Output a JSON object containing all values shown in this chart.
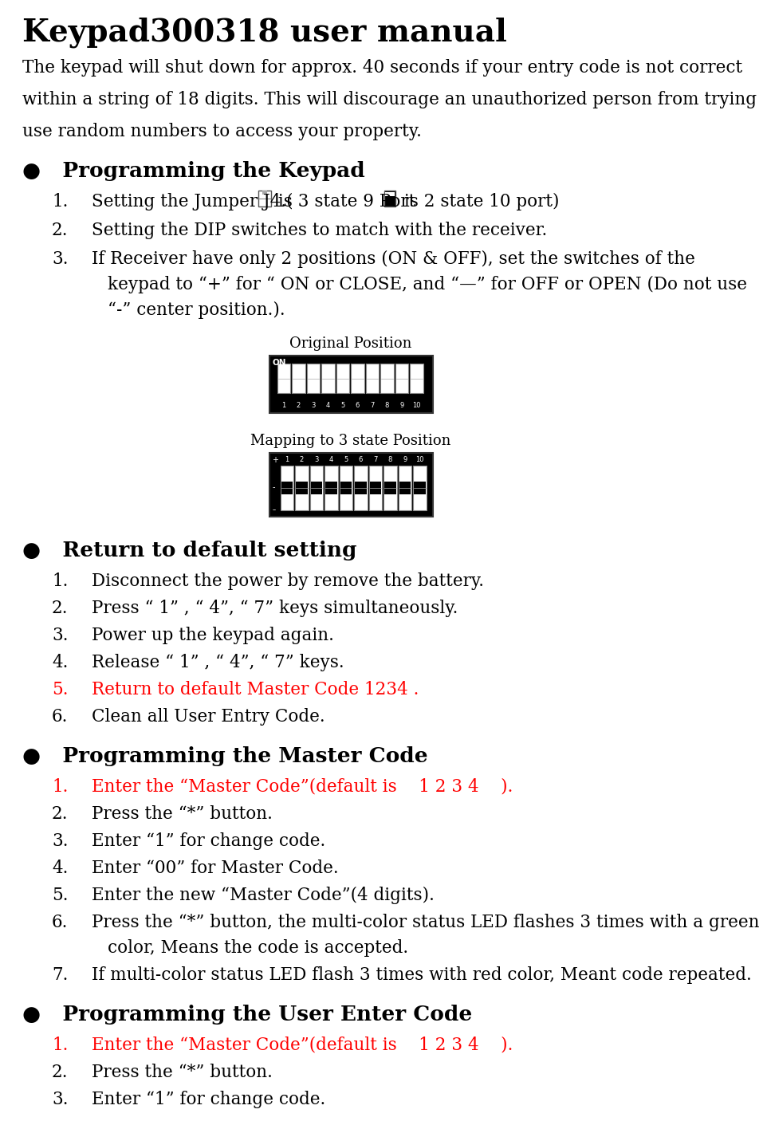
{
  "title": "Keypad300318 user manual",
  "intro_lines": [
    "The keypad will shut down for approx. 40 seconds if your entry code is not correct",
    "within a string of 18 digits. This will discourage an unauthorized person from trying",
    "use random numbers to access your property."
  ],
  "sections": [
    {
      "heading": "●   Programming the Keypad",
      "items": [
        {
          "num": "1.",
          "text_before": "Setting the Jumper J4.(",
          "icon1": true,
          "text_mid": " is 3 state 9 Port ",
          "icon2": true,
          "text_after": " is 2 state 10 port)",
          "color": "black",
          "special": "jumper"
        },
        {
          "num": "2.",
          "text": "Setting the DIP switches to match with the receiver.",
          "color": "black"
        },
        {
          "num": "3.",
          "lines": [
            "If Receiver have only 2 positions (ON & OFF), set the switches of the",
            "keypad to “+” for “ ON or CLOSE, and “—” for OFF or OPEN (Do not use",
            "“-” center position.)."
          ],
          "color": "black"
        }
      ],
      "image1_label": "Original Position",
      "image2_label": "Mapping to 3 state Position"
    },
    {
      "heading": "●   Return to default setting",
      "items": [
        {
          "num": "1.",
          "text": "Disconnect the power by remove the battery.",
          "color": "black"
        },
        {
          "num": "2.",
          "text": "Press “ 1” , “ 4”, “ 7” keys simultaneously.",
          "color": "black"
        },
        {
          "num": "3.",
          "text": "Power up the keypad again.",
          "color": "black"
        },
        {
          "num": "4.",
          "text": "Release “ 1” , “ 4”, “ 7” keys.",
          "color": "black"
        },
        {
          "num": "5.",
          "text": "Return to default Master Code 1234 .",
          "color": "red"
        },
        {
          "num": "6.",
          "text": "Clean all User Entry Code.",
          "color": "black"
        }
      ]
    },
    {
      "heading": "●   Programming the Master Code",
      "items": [
        {
          "num": "1.",
          "text": "Enter the “Master Code”(default is    1 2 3 4    ).",
          "color": "red"
        },
        {
          "num": "2.",
          "text": "Press the “*” button.",
          "color": "black"
        },
        {
          "num": "3.",
          "text": "Enter “1” for change code.",
          "color": "black"
        },
        {
          "num": "4.",
          "text": "Enter “00” for Master Code.",
          "color": "black"
        },
        {
          "num": "5.",
          "text": "Enter the new “Master Code”(4 digits).",
          "color": "black"
        },
        {
          "num": "6.",
          "lines": [
            "Press the “*” button, the multi-color status LED flashes 3 times with a green",
            "color, Means the code is accepted."
          ],
          "color": "black"
        },
        {
          "num": "7.",
          "text": "If multi-color status LED flash 3 times with red color, Meant code repeated.",
          "color": "black"
        }
      ]
    },
    {
      "heading": "●   Programming the User Enter Code",
      "items": [
        {
          "num": "1.",
          "text": "Enter the “Master Code”(default is    1 2 3 4    ).",
          "color": "red"
        },
        {
          "num": "2.",
          "text": "Press the “*” button.",
          "color": "black"
        },
        {
          "num": "3.",
          "text": "Enter “1” for change code.",
          "color": "black"
        }
      ]
    }
  ],
  "bg_color": "#ffffff",
  "text_color": "#000000",
  "title_fontsize": 28,
  "heading_fontsize": 19,
  "body_fontsize": 15.5,
  "image_label_fontsize": 13
}
